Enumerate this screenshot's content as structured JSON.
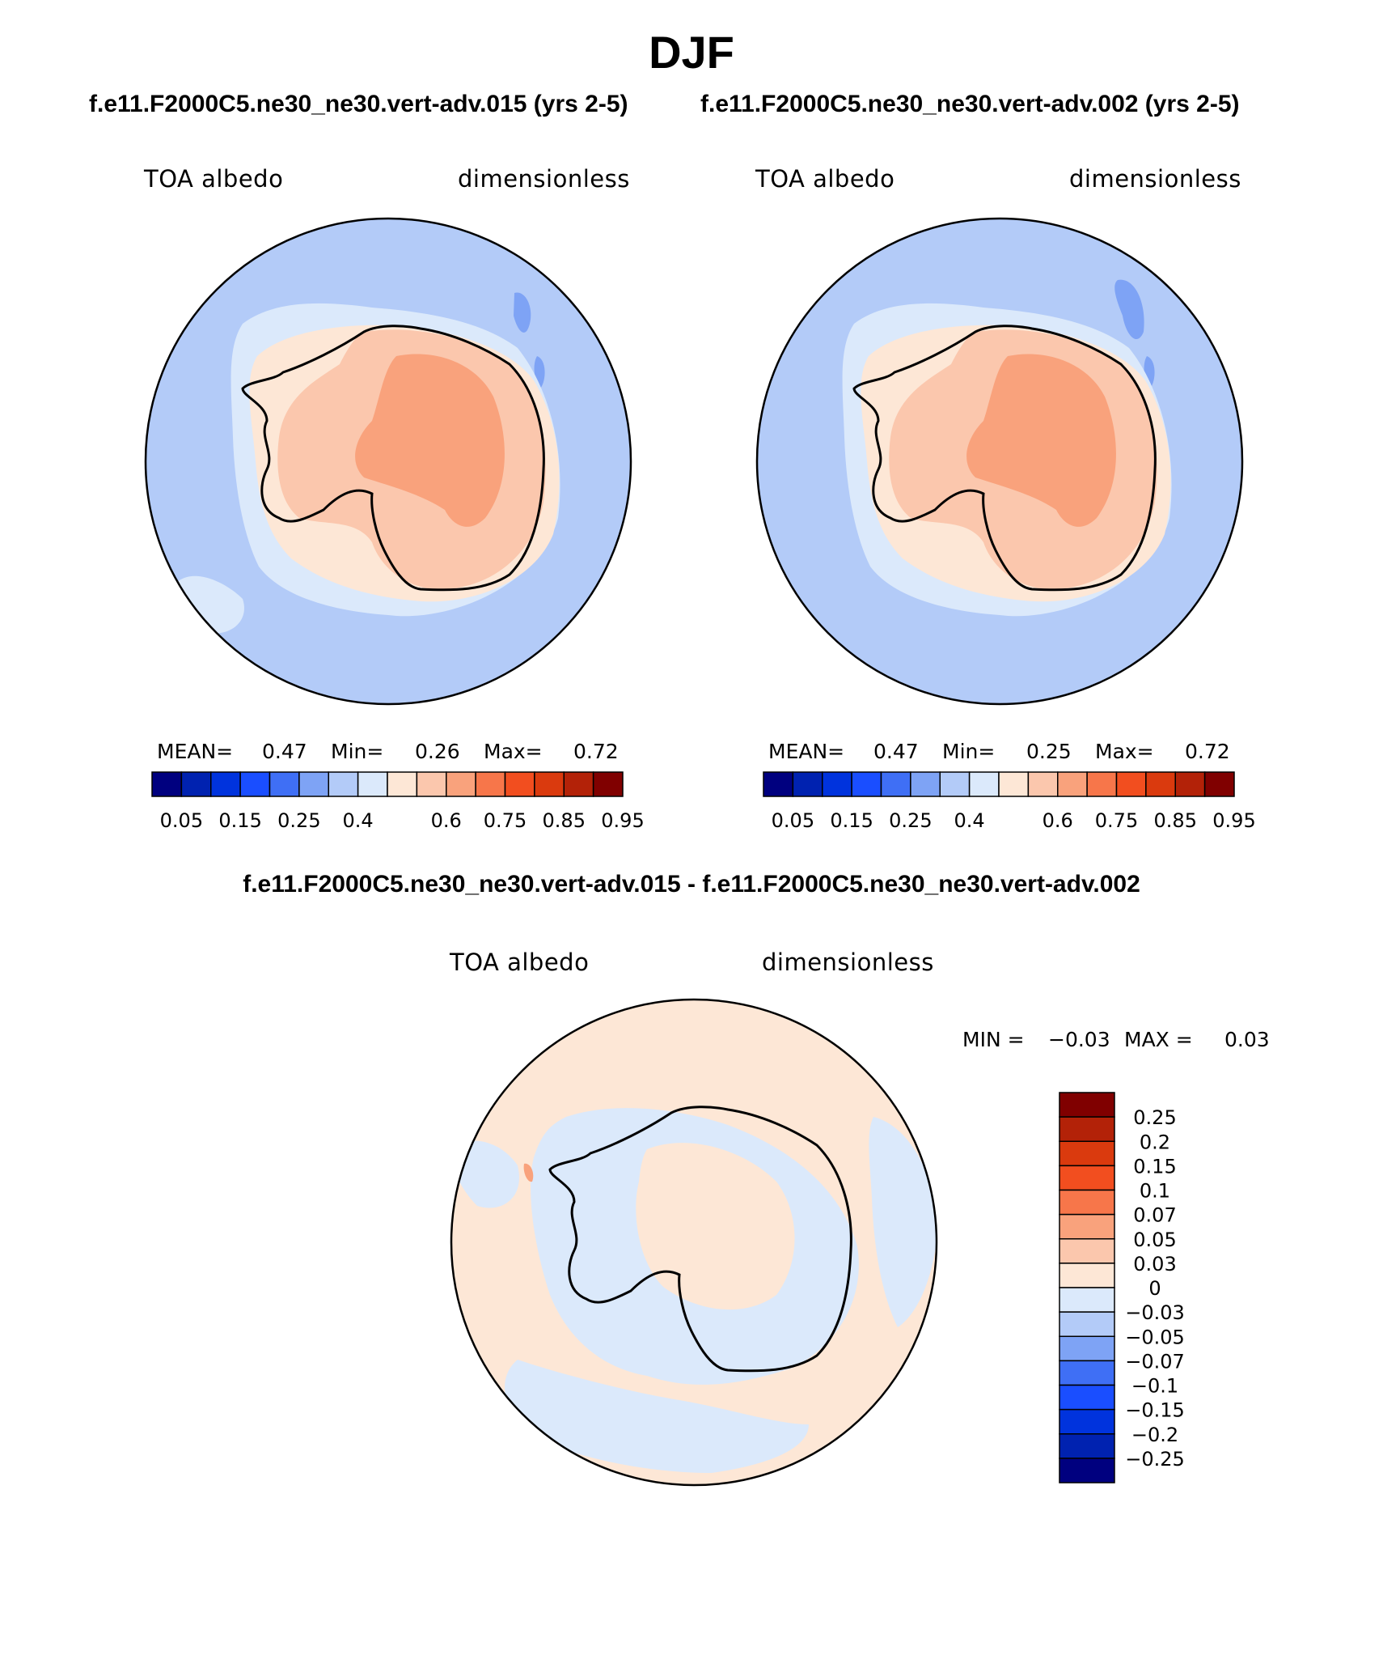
{
  "figure": {
    "title": "DJF"
  },
  "panels": [
    {
      "case_title": "f.e11.F2000C5.ne30_ne30.vert-adv.015 (yrs 2-5)",
      "left_label": "TOA albedo",
      "right_label": "dimensionless",
      "stats": {
        "mean_label": "MEAN=",
        "mean": "0.47",
        "min_label": "Min=",
        "min": "0.26",
        "max_label": "Max=",
        "max": "0.72"
      }
    },
    {
      "case_title": "f.e11.F2000C5.ne30_ne30.vert-adv.002 (yrs 2-5)",
      "left_label": "TOA albedo",
      "right_label": "dimensionless",
      "stats": {
        "mean_label": "MEAN=",
        "mean": "0.47",
        "min_label": "Min=",
        "min": "0.25",
        "max_label": "Max=",
        "max": "0.72"
      }
    }
  ],
  "diff_panel": {
    "title": "f.e11.F2000C5.ne30_ne30.vert-adv.015 - f.e11.F2000C5.ne30_ne30.vert-adv.002",
    "left_label": "TOA albedo",
    "right_label": "dimensionless",
    "stats": {
      "min_label": "MIN =",
      "min": "−0.03",
      "max_label": "MAX =",
      "max": "0.03"
    }
  },
  "abs_colorbar": {
    "labels": [
      "0.05",
      "0.15",
      "0.25",
      "0.4",
      "0.6",
      "0.75",
      "0.85",
      "0.95"
    ],
    "colors": [
      "#00007f",
      "#0022b0",
      "#0033dd",
      "#1a4eff",
      "#3f6ff5",
      "#7ea3f5",
      "#b3cbf8",
      "#dbe9fb",
      "#fde7d6",
      "#fbc7ad",
      "#f9a27c",
      "#f7764a",
      "#f24e1f",
      "#da3a0e",
      "#b32208",
      "#800000"
    ]
  },
  "diff_colorbar": {
    "labels": [
      "0.25",
      "0.2",
      "0.15",
      "0.1",
      "0.07",
      "0.05",
      "0.03",
      "0",
      "−0.03",
      "−0.05",
      "−0.07",
      "−0.1",
      "−0.15",
      "−0.2",
      "−0.25"
    ],
    "colors": [
      "#800000",
      "#b32208",
      "#da3a0e",
      "#f24e1f",
      "#f7764a",
      "#f9a27c",
      "#fbc7ad",
      "#fde7d6",
      "#dbe9fb",
      "#b3cbf8",
      "#7ea3f5",
      "#3f6ff5",
      "#1a4eff",
      "#0033dd",
      "#0022b0",
      "#00007f"
    ]
  },
  "map_colors": {
    "ocean": "#b3cbf8",
    "sea_ice_edge": "#dbe9fb",
    "coast_band": "#fde7d6",
    "ice_sheet": "#fbc7ad",
    "interior": "#f9a27c",
    "blue_patch": "#7ea3f5",
    "diff_positive": "#fde7d6",
    "diff_negative": "#dbe9fb",
    "diff_strong": "#f9a27c"
  }
}
